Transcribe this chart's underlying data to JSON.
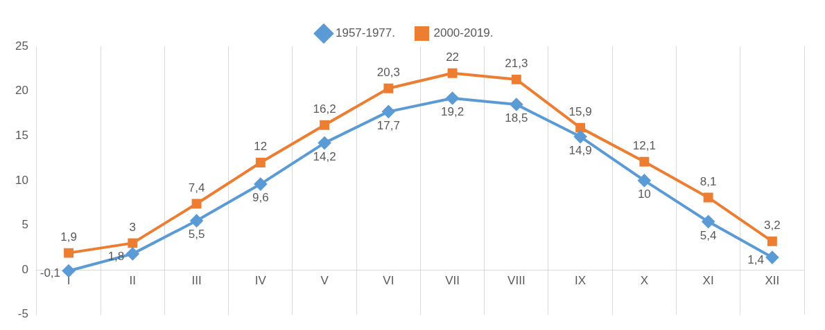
{
  "chart_data": {
    "type": "line",
    "categories": [
      "I",
      "II",
      "III",
      "IV",
      "V",
      "VI",
      "VII",
      "VIII",
      "IX",
      "X",
      "XI",
      "XII"
    ],
    "series": [
      {
        "name": "1957-1977.",
        "color": "#5b9bd5",
        "marker": "diamond",
        "values": [
          -0.1,
          1.8,
          5.5,
          9.6,
          14.2,
          17.7,
          19.2,
          18.5,
          14.9,
          10,
          5.4,
          1.4
        ],
        "value_labels": [
          "-0,1",
          "1,8",
          "5,5",
          "9,6",
          "14,2",
          "17,7",
          "19,2",
          "18,5",
          "14,9",
          "10",
          "5,4",
          "1,4"
        ]
      },
      {
        "name": "2000-2019.",
        "color": "#ed7d31",
        "marker": "square",
        "values": [
          1.9,
          3,
          7.4,
          12,
          16.2,
          20.3,
          22,
          21.3,
          15.9,
          12.1,
          8.1,
          3.2
        ],
        "value_labels": [
          "1,9",
          "3",
          "7,4",
          "12",
          "16,2",
          "20,3",
          "22",
          "21,3",
          "15,9",
          "12,1",
          "8,1",
          "3,2"
        ]
      }
    ],
    "ylim": [
      -5,
      25
    ],
    "yticks": [
      -5,
      0,
      5,
      10,
      15,
      20,
      25
    ],
    "grid": "x",
    "legend": "top",
    "line_style": "solid"
  }
}
